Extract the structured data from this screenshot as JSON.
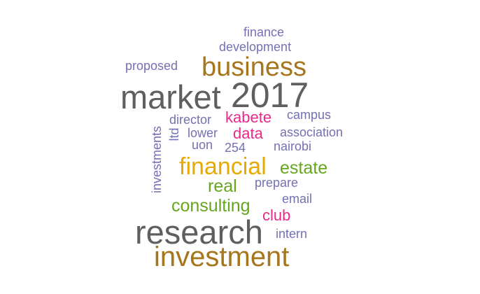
{
  "colors": {
    "dark_gray": "#5f5f5f",
    "bronze": "#a6761d",
    "gold": "#e6ab02",
    "green": "#66a61e",
    "magenta": "#e7298a",
    "purple": "#7570b3"
  },
  "words": {
    "market": "market",
    "y2017": "2017",
    "business": "business",
    "research": "research",
    "investment": "investment",
    "financial": "financial",
    "estate": "estate",
    "real": "real",
    "consulting": "consulting",
    "club": "club",
    "kabete": "kabete",
    "data": "data",
    "finance": "finance",
    "development": "development",
    "proposed": "proposed",
    "director": "director",
    "campus": "campus",
    "lower": "lower",
    "association": "association",
    "uon": "uon",
    "n254": "254",
    "nairobi": "nairobi",
    "prepare": "prepare",
    "email": "email",
    "intern": "intern",
    "investments": "investments",
    "ltd": "ltd"
  }
}
